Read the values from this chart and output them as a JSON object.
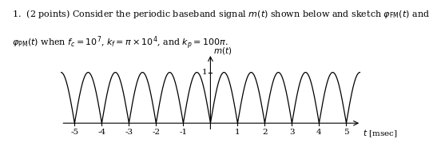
{
  "line1": "1.  (2 points) Consider the periodic baseband signal $m(t)$ shown below and sketch $\\varphi_{\\mathrm{FM}}(t)$ and",
  "line2": "$\\varphi_{\\mathrm{PM}}(t)$ when $f_c = 10^7$, $k_f = \\pi \\times 10^4$, and $k_p = 100\\pi$.",
  "ylabel": "$m(t)$",
  "xlabel": "$t$ [msec]",
  "xlim": [
    -5.5,
    5.65
  ],
  "ylim": [
    -0.18,
    1.42
  ],
  "xticks": [
    -5,
    -4,
    -3,
    -2,
    -1,
    1,
    2,
    3,
    4,
    5
  ],
  "ytick_val": 1,
  "line_color": "#000000",
  "bg_color": "#ffffff",
  "text_fontsize": 8.0,
  "label_fontsize": 7.5
}
